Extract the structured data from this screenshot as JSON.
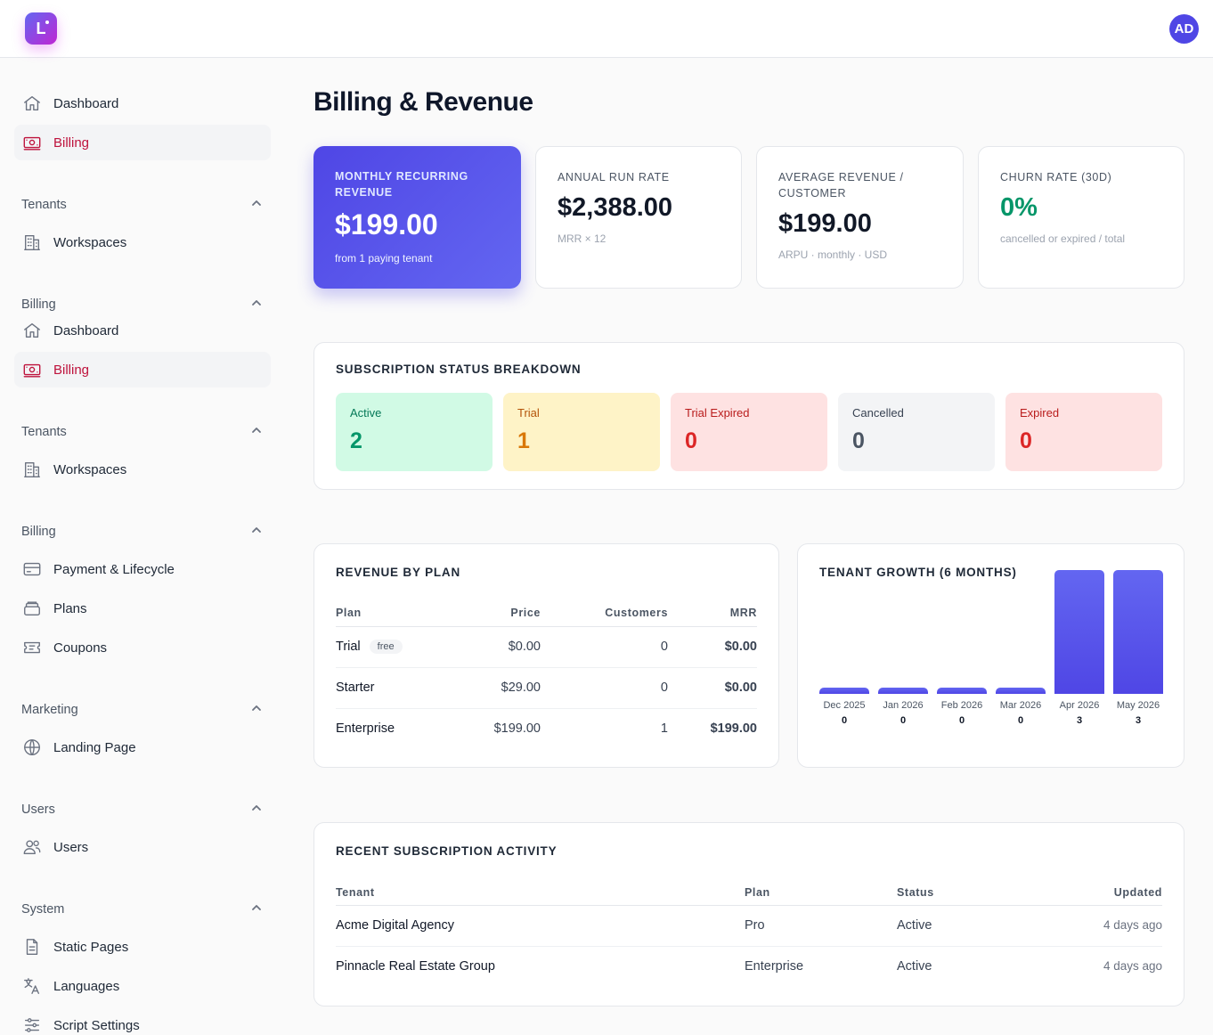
{
  "app": {
    "logo_letter": "L",
    "user_initials": "AD"
  },
  "sidebar": {
    "items": [
      {
        "type": "item",
        "label": "Dashboard",
        "icon": "home-icon",
        "active": false
      },
      {
        "type": "item",
        "label": "Billing",
        "icon": "banknote-icon",
        "active": true
      },
      {
        "type": "section",
        "label": "Tenants"
      },
      {
        "type": "item",
        "label": "Workspaces",
        "icon": "building-icon",
        "active": false
      },
      {
        "type": "section",
        "label": "Billing"
      },
      {
        "type": "item",
        "label": "Dashboard",
        "icon": "home-icon",
        "active": false
      },
      {
        "type": "item",
        "label": "Billing",
        "icon": "banknote-icon",
        "active": true
      },
      {
        "type": "section",
        "label": "Tenants"
      },
      {
        "type": "item",
        "label": "Workspaces",
        "icon": "building-icon",
        "active": false
      },
      {
        "type": "section",
        "label": "Billing"
      },
      {
        "type": "item",
        "label": "Payment & Lifecycle",
        "icon": "credit-card-icon",
        "active": false
      },
      {
        "type": "item",
        "label": "Plans",
        "icon": "stack-icon",
        "active": false
      },
      {
        "type": "item",
        "label": "Coupons",
        "icon": "ticket-icon",
        "active": false
      },
      {
        "type": "section",
        "label": "Marketing"
      },
      {
        "type": "item",
        "label": "Landing Page",
        "icon": "globe-icon",
        "active": false
      },
      {
        "type": "section",
        "label": "Users"
      },
      {
        "type": "item",
        "label": "Users",
        "icon": "users-icon",
        "active": false
      },
      {
        "type": "section",
        "label": "System"
      },
      {
        "type": "item",
        "label": "Static Pages",
        "icon": "document-icon",
        "active": false
      },
      {
        "type": "item",
        "label": "Languages",
        "icon": "translate-icon",
        "active": false
      },
      {
        "type": "item",
        "label": "Script Settings",
        "icon": "sliders-icon",
        "active": false
      }
    ]
  },
  "page": {
    "title": "Billing & Revenue"
  },
  "kpis": [
    {
      "label": "Monthly Recurring Revenue",
      "value": "$199.00",
      "sub": "from 1 paying tenant"
    },
    {
      "label": "Annual Run Rate",
      "value": "$2,388.00",
      "sub": "MRR × 12"
    },
    {
      "label": "Average Revenue / Customer",
      "value": "$199.00",
      "sub": "ARPU · monthly · USD"
    },
    {
      "label": "Churn Rate (30D)",
      "value": "0%",
      "sub": "cancelled or expired / total"
    }
  ],
  "status_breakdown": {
    "title": "Subscription Status Breakdown",
    "items": [
      {
        "label": "Active",
        "value": "2",
        "bg": "#d1fae5",
        "fg": "#059669",
        "label_fg": "#047857"
      },
      {
        "label": "Trial",
        "value": "1",
        "bg": "#fef3c7",
        "fg": "#d97706",
        "label_fg": "#b45309"
      },
      {
        "label": "Trial Expired",
        "value": "0",
        "bg": "#fee2e2",
        "fg": "#dc2626",
        "label_fg": "#b91c1c"
      },
      {
        "label": "Cancelled",
        "value": "0",
        "bg": "#f3f4f6",
        "fg": "#4b5563",
        "label_fg": "#374151"
      },
      {
        "label": "Expired",
        "value": "0",
        "bg": "#fee2e2",
        "fg": "#dc2626",
        "label_fg": "#b91c1c"
      }
    ]
  },
  "revenue_by_plan": {
    "title": "Revenue by Plan",
    "columns": [
      "Plan",
      "Price",
      "Customers",
      "MRR"
    ],
    "rows": [
      {
        "plan": "Trial",
        "badge": "free",
        "price": "$0.00",
        "customers": "0",
        "mrr": "$0.00"
      },
      {
        "plan": "Starter",
        "badge": "",
        "price": "$29.00",
        "customers": "0",
        "mrr": "$0.00"
      },
      {
        "plan": "Enterprise",
        "badge": "",
        "price": "$199.00",
        "customers": "1",
        "mrr": "$199.00"
      }
    ]
  },
  "tenant_growth": {
    "title": "Tenant Growth (6 Months)"
  },
  "chart_data": {
    "type": "bar",
    "title": "Tenant Growth (6 Months)",
    "categories": [
      "Dec 2025",
      "Jan 2026",
      "Feb 2026",
      "Mar 2026",
      "Apr 2026",
      "May 2026"
    ],
    "values": [
      0,
      0,
      0,
      0,
      3,
      3
    ],
    "xlabel": "",
    "ylabel": "",
    "ylim": [
      0,
      3
    ],
    "grid": false,
    "legend": "none",
    "bar_color": "#5b5bf0"
  },
  "recent_activity": {
    "title": "Recent Subscription Activity",
    "columns": [
      "Tenant",
      "Plan",
      "Status",
      "Updated"
    ],
    "rows": [
      {
        "tenant": "Acme Digital Agency",
        "plan": "Pro",
        "status": "Active",
        "updated": "4 days ago"
      },
      {
        "tenant": "Pinnacle Real Estate Group",
        "plan": "Enterprise",
        "status": "Active",
        "updated": "4 days ago"
      }
    ]
  },
  "colors": {
    "accent": "#4f46e5",
    "active_nav": "#be123c",
    "positive": "#059669"
  }
}
